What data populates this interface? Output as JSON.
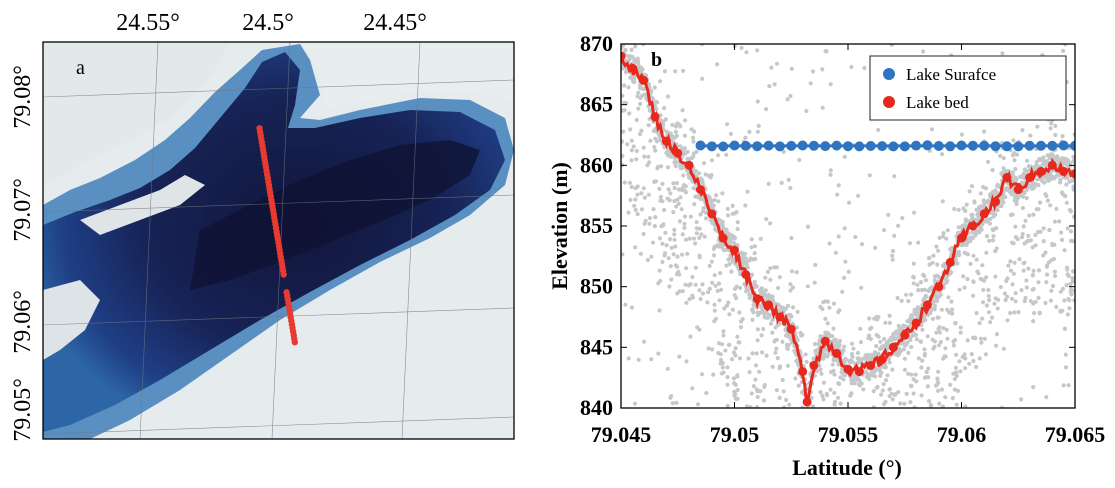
{
  "colors": {
    "lake_deep": "#14193f",
    "lake_mid": "#1e3f86",
    "lake_shallow": "#3a78b5",
    "snow": "#e9eef1",
    "track_points": "#e83a30",
    "surface_series": "#2f74c0",
    "bed_series": "#e8281d",
    "raw_photons": "#c5c8cb"
  },
  "chart_data": [
    {
      "type": "map",
      "panel_label": "a",
      "x_tick_labels": [
        "24.55°",
        "24.5°",
        "24.45°"
      ],
      "y_tick_labels": [
        "79.08°",
        "79.07°",
        "79.06°",
        "79.05°"
      ],
      "track": {
        "lat_start": 79.077,
        "lat_end": 79.0565,
        "lon": 24.5,
        "gap_lat": [
          79.0615,
          79.0628
        ]
      }
    },
    {
      "type": "scatter",
      "panel_label": "b",
      "xlabel": "Latitude (°)",
      "ylabel": "Elevation (m)",
      "xlim": [
        79.045,
        79.065
      ],
      "ylim": [
        840,
        870
      ],
      "x_ticks": [
        79.045,
        79.05,
        79.055,
        79.06,
        79.065
      ],
      "x_tick_labels": [
        "79.045",
        "79.05",
        "79.055",
        "79.06",
        "79.065"
      ],
      "y_ticks": [
        840,
        845,
        850,
        855,
        860,
        865,
        870
      ],
      "y_tick_labels": [
        "840",
        "845",
        "850",
        "855",
        "860",
        "865",
        "870"
      ],
      "grid": false,
      "legend_position": "top-right",
      "series": [
        {
          "name": "Lake Surafce",
          "mode": "line+markers",
          "x_start": 79.0485,
          "x_end": 79.065,
          "y": 861.6
        },
        {
          "name": "Lake bed",
          "mode": "line+markers",
          "x": [
            79.045,
            79.0455,
            79.046,
            79.0465,
            79.047,
            79.0475,
            79.048,
            79.0485,
            79.049,
            79.0495,
            79.05,
            79.0505,
            79.051,
            79.0515,
            79.052,
            79.0525,
            79.053,
            79.0532,
            79.0535,
            79.054,
            79.0545,
            79.055,
            79.0555,
            79.056,
            79.0565,
            79.057,
            79.0575,
            79.058,
            79.0585,
            79.059,
            79.0595,
            79.06,
            79.0605,
            79.061,
            79.0615,
            79.062,
            79.0625,
            79.063,
            79.0635,
            79.064,
            79.0645,
            79.065
          ],
          "y": [
            869,
            868,
            867,
            864,
            862,
            861,
            860,
            858,
            856,
            854,
            853,
            851,
            849,
            848.5,
            847.5,
            846.5,
            843,
            840.5,
            843.5,
            845.5,
            844.5,
            843.2,
            843,
            843.5,
            844,
            845,
            846,
            847,
            848.5,
            850,
            852,
            854,
            855,
            856,
            857,
            859,
            858,
            859,
            859.5,
            860,
            859.5,
            859.3
          ]
        }
      ],
      "raw_photons": {
        "description_band": "dense grey photon returns around the bed profile with sparse background noise across the plot"
      }
    }
  ]
}
